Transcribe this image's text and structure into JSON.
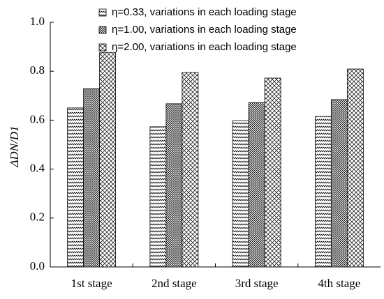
{
  "chart_data": {
    "type": "bar",
    "ylabel": "ΔDN/D1",
    "categories": [
      "1st stage",
      "2nd stage",
      "3rd stage",
      "4th stage"
    ],
    "series": [
      {
        "name": "η=0.33, variations in each loading stage",
        "color": "#000000",
        "pattern": "zigzag",
        "values": [
          0.65,
          0.573,
          0.598,
          0.615
        ]
      },
      {
        "name": "η=1.00, variations in each loading stage",
        "color": "#000000",
        "pattern": "dots",
        "values": [
          0.729,
          0.667,
          0.672,
          0.684
        ]
      },
      {
        "name": "η=2.00, variations in each loading stage",
        "color": "#000000",
        "pattern": "crosshatch",
        "values": [
          0.877,
          0.795,
          0.772,
          0.809
        ]
      }
    ],
    "ylim": [
      0,
      1
    ],
    "yticks": [
      {
        "value": 0,
        "label": "0.0"
      },
      0.2,
      0.4,
      0.6,
      0.8,
      {
        "value": 1,
        "label": "1.0"
      }
    ],
    "legend": "top-left"
  }
}
